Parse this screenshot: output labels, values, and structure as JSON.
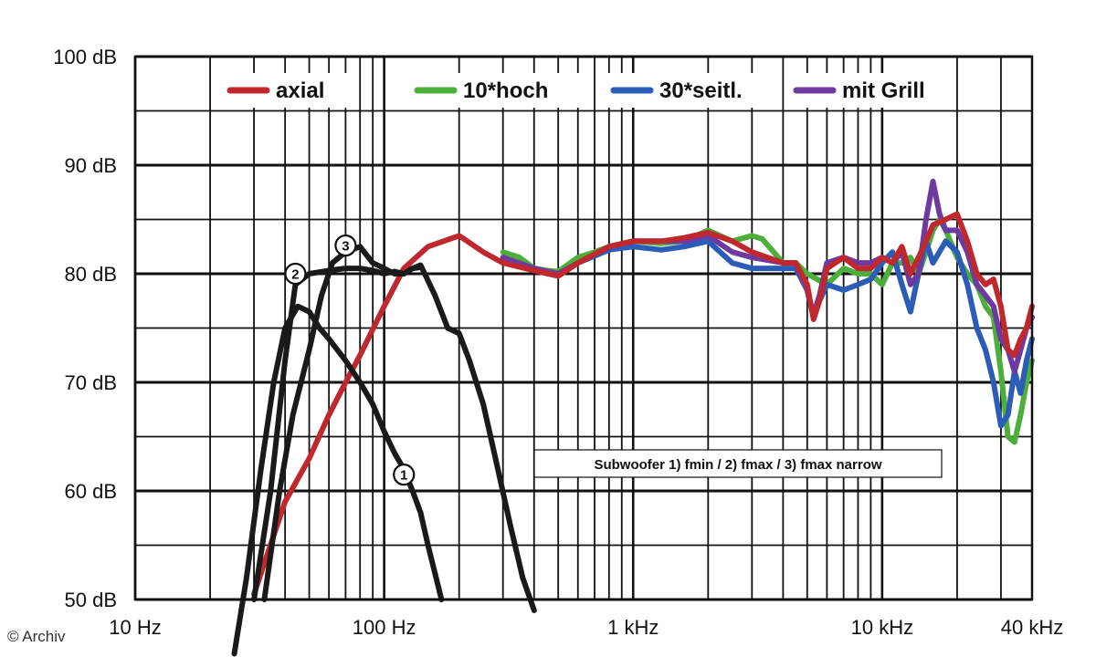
{
  "chart_data": {
    "type": "line",
    "x_scale": "log",
    "xlim": [
      10,
      40000
    ],
    "ylim": [
      50,
      100
    ],
    "grid": true,
    "legend_placement": "top",
    "y_ticks": [
      {
        "value": 100,
        "label": "100 dB"
      },
      {
        "value": 90,
        "label": "90 dB"
      },
      {
        "value": 80,
        "label": "80 dB"
      },
      {
        "value": 70,
        "label": "70 dB"
      },
      {
        "value": 60,
        "label": "60 dB"
      },
      {
        "value": 50,
        "label": "50 dB"
      }
    ],
    "x_ticks": [
      {
        "value": 10,
        "label": "10 Hz"
      },
      {
        "value": 100,
        "label": "100 Hz"
      },
      {
        "value": 1000,
        "label": "1 kHz"
      },
      {
        "value": 10000,
        "label": "10 kHz"
      },
      {
        "value": 40000,
        "label": "40 kHz"
      }
    ],
    "annotation": "Subwoofer 1) fmin / 2) fmax / 3) fmax narrow",
    "credit": "© Archiv",
    "series": [
      {
        "name": "10*hoch",
        "color": "#4caf3a",
        "legend": true,
        "points": [
          [
            300,
            82
          ],
          [
            350,
            81.5
          ],
          [
            400,
            80.5
          ],
          [
            450,
            80.3
          ],
          [
            500,
            80.2
          ],
          [
            600,
            81.5
          ],
          [
            700,
            82
          ],
          [
            800,
            82.5
          ],
          [
            1000,
            83
          ],
          [
            1300,
            82.8
          ],
          [
            1600,
            83
          ],
          [
            2000,
            84
          ],
          [
            2500,
            83
          ],
          [
            3000,
            83.5
          ],
          [
            3300,
            83.2
          ],
          [
            4000,
            81
          ],
          [
            4500,
            81
          ],
          [
            5000,
            80
          ],
          [
            6000,
            79
          ],
          [
            7000,
            80.5
          ],
          [
            8000,
            80
          ],
          [
            9000,
            80
          ],
          [
            10000,
            79
          ],
          [
            11000,
            81
          ],
          [
            12000,
            81
          ],
          [
            13000,
            81.5
          ],
          [
            14000,
            80
          ],
          [
            15000,
            82
          ],
          [
            16000,
            84
          ],
          [
            17000,
            85
          ],
          [
            18000,
            84
          ],
          [
            20000,
            81.5
          ],
          [
            22000,
            80
          ],
          [
            24000,
            79
          ],
          [
            26000,
            77
          ],
          [
            28000,
            76
          ],
          [
            30000,
            71
          ],
          [
            32000,
            65
          ],
          [
            34000,
            64.5
          ],
          [
            36000,
            67
          ],
          [
            38000,
            70
          ],
          [
            40000,
            72
          ]
        ]
      },
      {
        "name": "30*seitl.",
        "color": "#2a5cb8",
        "legend": true,
        "points": [
          [
            300,
            81.5
          ],
          [
            400,
            80.3
          ],
          [
            500,
            79.8
          ],
          [
            600,
            81
          ],
          [
            800,
            82.2
          ],
          [
            1000,
            82.5
          ],
          [
            1300,
            82.2
          ],
          [
            1600,
            82.5
          ],
          [
            2000,
            83
          ],
          [
            2500,
            81
          ],
          [
            3000,
            80.5
          ],
          [
            4000,
            80.5
          ],
          [
            4500,
            80.5
          ],
          [
            5000,
            78.5
          ],
          [
            5300,
            76
          ],
          [
            5600,
            77.5
          ],
          [
            6000,
            79
          ],
          [
            7000,
            78.5
          ],
          [
            8000,
            79
          ],
          [
            9000,
            79.5
          ],
          [
            10000,
            81
          ],
          [
            11000,
            82
          ],
          [
            12000,
            79
          ],
          [
            13000,
            76.5
          ],
          [
            14000,
            80
          ],
          [
            15000,
            83
          ],
          [
            16000,
            81
          ],
          [
            18000,
            83
          ],
          [
            20000,
            82
          ],
          [
            22000,
            79
          ],
          [
            24000,
            75
          ],
          [
            26000,
            73
          ],
          [
            28000,
            70
          ],
          [
            30000,
            66
          ],
          [
            32000,
            67
          ],
          [
            34000,
            71
          ],
          [
            36000,
            69
          ],
          [
            38000,
            72
          ],
          [
            40000,
            74
          ]
        ]
      },
      {
        "name": "mit Grill",
        "color": "#6e3aa0",
        "legend": true,
        "points": [
          [
            300,
            81.5
          ],
          [
            400,
            80.5
          ],
          [
            500,
            80
          ],
          [
            600,
            81
          ],
          [
            800,
            82.5
          ],
          [
            1000,
            83
          ],
          [
            1300,
            83
          ],
          [
            1600,
            83
          ],
          [
            2000,
            83.5
          ],
          [
            2500,
            82
          ],
          [
            3000,
            81.5
          ],
          [
            4000,
            81
          ],
          [
            4500,
            81
          ],
          [
            5000,
            78.5
          ],
          [
            5300,
            76.2
          ],
          [
            5600,
            78
          ],
          [
            6000,
            81
          ],
          [
            7000,
            81.5
          ],
          [
            8000,
            81
          ],
          [
            9000,
            81
          ],
          [
            10000,
            81.5
          ],
          [
            11000,
            81
          ],
          [
            12000,
            82
          ],
          [
            13000,
            79
          ],
          [
            14000,
            80
          ],
          [
            15000,
            85
          ],
          [
            16000,
            88.5
          ],
          [
            17000,
            85.5
          ],
          [
            18000,
            84
          ],
          [
            20000,
            84
          ],
          [
            22000,
            82
          ],
          [
            24000,
            79
          ],
          [
            26000,
            78
          ],
          [
            28000,
            77
          ],
          [
            30000,
            74
          ],
          [
            32000,
            73
          ],
          [
            34000,
            71
          ],
          [
            36000,
            73
          ],
          [
            38000,
            75
          ],
          [
            40000,
            76
          ]
        ]
      },
      {
        "name": "axial",
        "color": "#c0282d",
        "legend": true,
        "points": [
          [
            30,
            50.5
          ],
          [
            40,
            59
          ],
          [
            50,
            63
          ],
          [
            60,
            67
          ],
          [
            70,
            70
          ],
          [
            80,
            72.5
          ],
          [
            100,
            77
          ],
          [
            120,
            80.5
          ],
          [
            150,
            82.5
          ],
          [
            200,
            83.5
          ],
          [
            250,
            82
          ],
          [
            300,
            81
          ],
          [
            400,
            80.3
          ],
          [
            500,
            79.8
          ],
          [
            600,
            81
          ],
          [
            800,
            82.5
          ],
          [
            1000,
            83
          ],
          [
            1300,
            83
          ],
          [
            1600,
            83.3
          ],
          [
            2000,
            83.8
          ],
          [
            2500,
            83
          ],
          [
            3000,
            82
          ],
          [
            4000,
            81
          ],
          [
            4500,
            81
          ],
          [
            5000,
            79
          ],
          [
            5300,
            75.8
          ],
          [
            5600,
            77.5
          ],
          [
            6000,
            80.5
          ],
          [
            7000,
            81.5
          ],
          [
            8000,
            80.5
          ],
          [
            9000,
            80.5
          ],
          [
            10000,
            81.5
          ],
          [
            11000,
            81
          ],
          [
            12000,
            82.5
          ],
          [
            13000,
            80
          ],
          [
            14000,
            81.5
          ],
          [
            15000,
            83
          ],
          [
            16000,
            84.5
          ],
          [
            18000,
            85
          ],
          [
            20000,
            85.5
          ],
          [
            22000,
            83
          ],
          [
            24000,
            80
          ],
          [
            26000,
            79
          ],
          [
            28000,
            79.5
          ],
          [
            30000,
            77
          ],
          [
            32000,
            73
          ],
          [
            34000,
            72.5
          ],
          [
            36000,
            74
          ],
          [
            38000,
            75
          ],
          [
            40000,
            77
          ]
        ]
      },
      {
        "name": "1",
        "color": "#1a1a1a",
        "legend": false,
        "points": [
          [
            25,
            45
          ],
          [
            28,
            52
          ],
          [
            32,
            62
          ],
          [
            36,
            70
          ],
          [
            40,
            75
          ],
          [
            45,
            77
          ],
          [
            50,
            76.5
          ],
          [
            55,
            75
          ],
          [
            60,
            74
          ],
          [
            70,
            72
          ],
          [
            80,
            70
          ],
          [
            90,
            68
          ],
          [
            100,
            65.5
          ],
          [
            110,
            63.5
          ],
          [
            120,
            62
          ],
          [
            130,
            60
          ],
          [
            140,
            58
          ],
          [
            150,
            55
          ],
          [
            170,
            50
          ]
        ]
      },
      {
        "name": "2",
        "color": "#1a1a1a",
        "legend": false,
        "points": [
          [
            30,
            50
          ],
          [
            35,
            60
          ],
          [
            40,
            72
          ],
          [
            44,
            79
          ],
          [
            50,
            80
          ],
          [
            60,
            80.3
          ],
          [
            70,
            80.5
          ],
          [
            80,
            80.5
          ],
          [
            90,
            80.3
          ],
          [
            100,
            80
          ],
          [
            110,
            80.2
          ],
          [
            120,
            80
          ],
          [
            130,
            80.5
          ],
          [
            140,
            80.8
          ],
          [
            160,
            78
          ],
          [
            180,
            75
          ],
          [
            200,
            74.5
          ],
          [
            220,
            72
          ],
          [
            250,
            68
          ],
          [
            280,
            63
          ],
          [
            320,
            57
          ],
          [
            360,
            52
          ],
          [
            400,
            49
          ]
        ]
      },
      {
        "name": "3",
        "color": "#1a1a1a",
        "legend": false,
        "points": [
          [
            33,
            50
          ],
          [
            38,
            60
          ],
          [
            43,
            67
          ],
          [
            50,
            73
          ],
          [
            56,
            78
          ],
          [
            62,
            81
          ],
          [
            70,
            82
          ],
          [
            80,
            82.5
          ],
          [
            90,
            81
          ],
          [
            100,
            80.5
          ],
          [
            110,
            80
          ],
          [
            120,
            80
          ],
          [
            130,
            80.5
          ],
          [
            140,
            80.6
          ]
        ]
      }
    ]
  }
}
